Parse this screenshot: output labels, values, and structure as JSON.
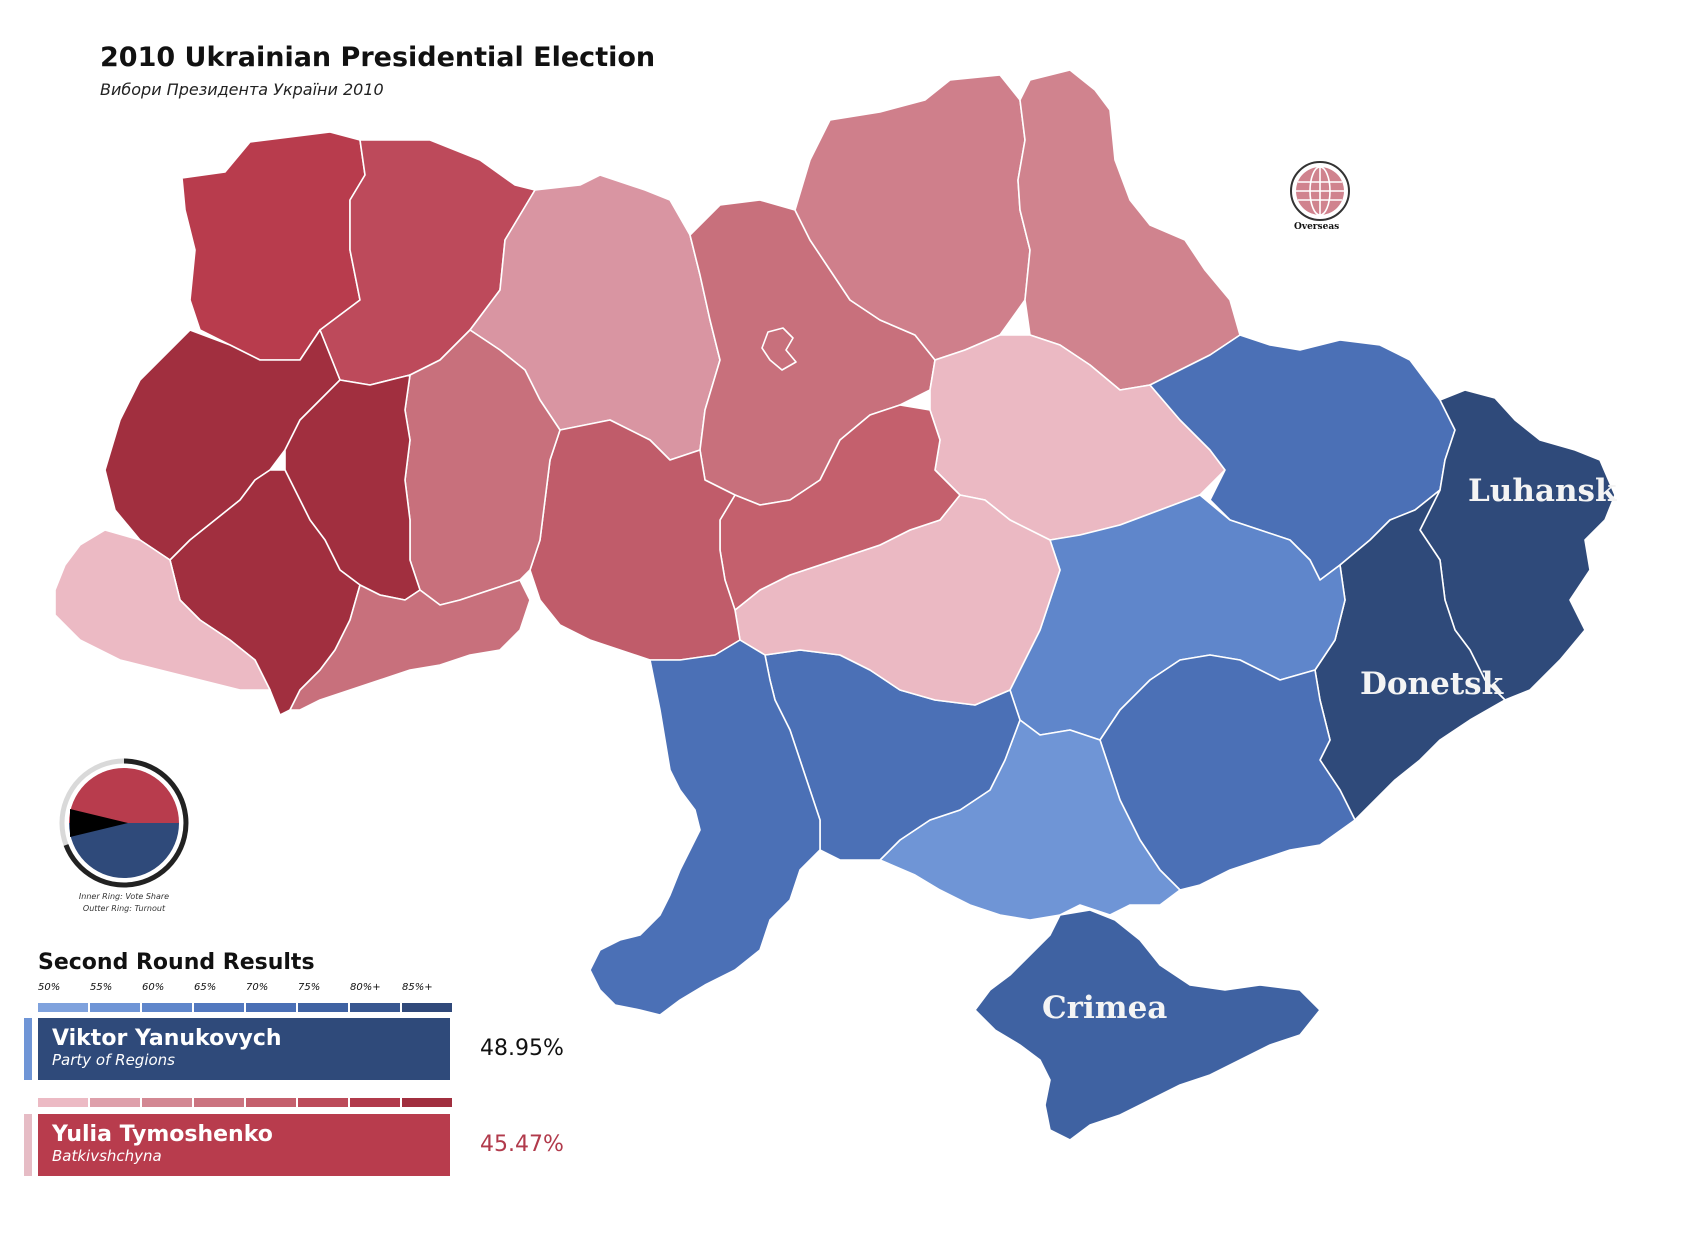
{
  "title": "2010 Ukrainian Presidential Election",
  "subtitle": "Вибори Президента України 2010",
  "overseas_label": "Overseas",
  "ring_caption": {
    "line1": "Inner Ring: Vote Share",
    "line2": "Outter Ring: Turnout"
  },
  "results": {
    "heading": "Second Round Results",
    "scale_labels": [
      "50%",
      "55%",
      "60%",
      "65%",
      "70%",
      "75%",
      "80%+",
      "85%+"
    ],
    "blue_scale": [
      "#7fa2dd",
      "#6f95d6",
      "#5f86cb",
      "#5278bf",
      "#4a6fb5",
      "#3f62a2",
      "#385790",
      "#30497a"
    ],
    "red_scale": [
      "#ecbac4",
      "#dea0ab",
      "#d38893",
      "#cb7480",
      "#c4606d",
      "#bc4b5a",
      "#b13a4b",
      "#a12f3f"
    ],
    "candidates": [
      {
        "name": "Viktor Yanukovych",
        "party": "Party of Regions",
        "percent": "48.95%",
        "share": 48.95,
        "color": "#2f4a7a",
        "tick_color": "#6f95d6"
      },
      {
        "name": "Yulia Tymoshenko",
        "party": "Batkivshchyna",
        "percent": "45.47%",
        "share": 45.47,
        "color": "#b83c4d",
        "tick_color": "#e6bcc5"
      }
    ]
  },
  "region_labels": {
    "luhansk": "Luhansk",
    "donetsk": "Donetsk",
    "crimea": "Crimea"
  },
  "colors": {
    "outline": "#ffffff",
    "pct_red": "#b13a4b",
    "pct_black": "#111111"
  }
}
